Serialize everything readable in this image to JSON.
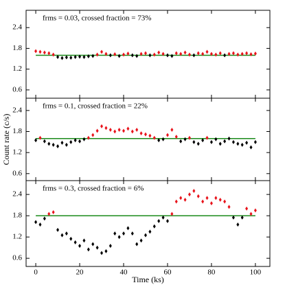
{
  "chart_data": [
    {
      "type": "scatter",
      "annotation": "frms = 0.03, crossed fraction = 73%",
      "x": [
        0,
        2,
        4,
        6,
        8,
        10,
        12,
        14,
        16,
        18,
        20,
        22,
        24,
        26,
        28,
        30,
        32,
        34,
        36,
        38,
        40,
        42,
        44,
        46,
        48,
        50,
        52,
        54,
        56,
        58,
        60,
        62,
        64,
        66,
        68,
        70,
        72,
        74,
        76,
        78,
        80,
        82,
        84,
        86,
        88,
        90,
        92,
        94,
        96,
        98,
        100
      ],
      "values": [
        1.72,
        1.7,
        1.68,
        1.66,
        1.62,
        1.55,
        1.52,
        1.54,
        1.53,
        1.55,
        1.56,
        1.55,
        1.57,
        1.58,
        1.62,
        1.7,
        1.64,
        1.6,
        1.63,
        1.58,
        1.62,
        1.65,
        1.6,
        1.58,
        1.64,
        1.66,
        1.6,
        1.62,
        1.68,
        1.64,
        1.6,
        1.58,
        1.66,
        1.64,
        1.68,
        1.62,
        1.6,
        1.66,
        1.64,
        1.7,
        1.64,
        1.62,
        1.66,
        1.6,
        1.64,
        1.66,
        1.62,
        1.64,
        1.66,
        1.63,
        1.65
      ],
      "threshold": 1.6,
      "threshold_color": "#1a8a1a",
      "color_above": "#e8141c",
      "color_below": "#000000",
      "xlim": [
        -4.4,
        106.6
      ],
      "xticks": [
        0,
        20,
        40,
        60,
        80,
        100
      ],
      "show_xtick_labels": false,
      "ylim": [
        0.36,
        2.9
      ],
      "yticks": [
        0.6,
        1.2,
        1.8,
        2.4
      ]
    },
    {
      "type": "scatter",
      "annotation": "frms = 0.1, crossed fraction = 22%",
      "ylabel": "Count rate (c/s)",
      "x": [
        0,
        2,
        4,
        6,
        8,
        10,
        12,
        14,
        16,
        18,
        20,
        22,
        24,
        26,
        28,
        30,
        32,
        34,
        36,
        38,
        40,
        42,
        44,
        46,
        48,
        50,
        52,
        54,
        56,
        58,
        60,
        62,
        64,
        66,
        68,
        70,
        72,
        74,
        76,
        78,
        80,
        82,
        84,
        86,
        88,
        90,
        92,
        94,
        96,
        98,
        100
      ],
      "values": [
        1.55,
        1.62,
        1.52,
        1.45,
        1.42,
        1.38,
        1.48,
        1.42,
        1.5,
        1.55,
        1.52,
        1.58,
        1.62,
        1.7,
        1.82,
        1.95,
        1.9,
        1.85,
        1.8,
        1.85,
        1.82,
        1.88,
        1.8,
        1.85,
        1.75,
        1.72,
        1.68,
        1.62,
        1.55,
        1.58,
        1.7,
        1.85,
        1.65,
        1.52,
        1.58,
        1.62,
        1.5,
        1.45,
        1.55,
        1.62,
        1.5,
        1.58,
        1.45,
        1.52,
        1.6,
        1.5,
        1.45,
        1.42,
        1.48,
        1.35,
        1.5
      ],
      "threshold": 1.6,
      "threshold_color": "#1a8a1a",
      "color_above": "#e8141c",
      "color_below": "#000000",
      "xlim": [
        -4.4,
        106.6
      ],
      "xticks": [
        0,
        20,
        40,
        60,
        80,
        100
      ],
      "show_xtick_labels": false,
      "ylim": [
        0.4,
        2.75
      ],
      "yticks": [
        0.6,
        1.2,
        1.8,
        2.4
      ]
    },
    {
      "type": "scatter",
      "annotation": "frms = 0.3, crossed fraction = 6%",
      "xlabel": "Time (ks)",
      "x": [
        0,
        2,
        4,
        6,
        8,
        10,
        12,
        14,
        16,
        18,
        20,
        22,
        24,
        26,
        28,
        30,
        32,
        34,
        36,
        38,
        40,
        42,
        44,
        46,
        48,
        50,
        52,
        54,
        56,
        58,
        60,
        62,
        64,
        66,
        68,
        70,
        72,
        74,
        76,
        78,
        80,
        82,
        84,
        86,
        88,
        90,
        92,
        94,
        96,
        98,
        100
      ],
      "values": [
        1.62,
        1.55,
        1.72,
        1.85,
        1.9,
        1.4,
        1.25,
        1.3,
        1.15,
        1.05,
        0.95,
        1.1,
        0.85,
        1.0,
        0.9,
        0.75,
        0.8,
        0.95,
        1.3,
        1.2,
        1.3,
        1.45,
        1.3,
        1.0,
        1.1,
        1.25,
        1.35,
        1.5,
        1.65,
        1.75,
        1.65,
        1.85,
        2.2,
        2.3,
        2.25,
        2.4,
        2.5,
        2.35,
        2.2,
        2.3,
        2.15,
        2.3,
        2.25,
        2.2,
        2.05,
        1.75,
        1.55,
        1.75,
        2.0,
        1.85,
        1.95
      ],
      "threshold": 1.8,
      "threshold_color": "#1a8a1a",
      "color_above": "#e8141c",
      "color_below": "#000000",
      "xlim": [
        -4.4,
        106.6
      ],
      "xticks": [
        0,
        20,
        40,
        60,
        80,
        100
      ],
      "show_xtick_labels": true,
      "ylim": [
        0.37,
        2.79
      ],
      "yticks": [
        0.6,
        1.2,
        1.8,
        2.4
      ]
    }
  ]
}
